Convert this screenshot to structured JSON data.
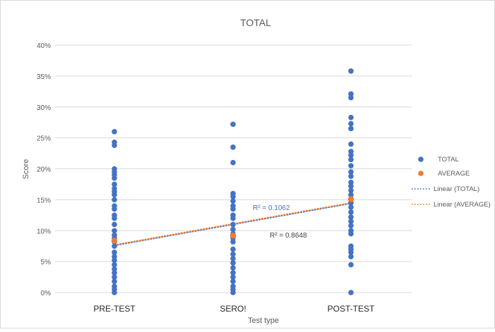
{
  "chart_data": {
    "type": "scatter",
    "title": "TOTAL",
    "xlabel": "Test type",
    "ylabel": "Score",
    "categories": [
      "PRE-TEST",
      "SERO!",
      "POST-TEST"
    ],
    "ylim": [
      0,
      0.4
    ],
    "yticks": [
      0,
      0.05,
      0.1,
      0.15,
      0.2,
      0.25,
      0.3,
      0.35,
      0.4
    ],
    "ytick_labels": [
      "0%",
      "5%",
      "10%",
      "15%",
      "20%",
      "25%",
      "30%",
      "35%",
      "40%"
    ],
    "grid": true,
    "legend_position": "right",
    "series": [
      {
        "name": "TOTAL",
        "color": "#4472c4",
        "points": [
          {
            "category": "PRE-TEST",
            "values": [
              0.26,
              0.243,
              0.238,
              0.2,
              0.195,
              0.19,
              0.185,
              0.175,
              0.168,
              0.163,
              0.158,
              0.15,
              0.14,
              0.135,
              0.125,
              0.12,
              0.11,
              0.1,
              0.093,
              0.088,
              0.082,
              0.075,
              0.065,
              0.058,
              0.052,
              0.045,
              0.038,
              0.032,
              0.025,
              0.018,
              0.01,
              0.005,
              0.0
            ]
          },
          {
            "category": "SERO!",
            "values": [
              0.272,
              0.235,
              0.21,
              0.16,
              0.155,
              0.148,
              0.14,
              0.135,
              0.125,
              0.12,
              0.11,
              0.102,
              0.095,
              0.088,
              0.082,
              0.07,
              0.062,
              0.055,
              0.048,
              0.04,
              0.032,
              0.025,
              0.018,
              0.01,
              0.005,
              0.0
            ]
          },
          {
            "category": "POST-TEST",
            "values": [
              0.358,
              0.321,
              0.315,
              0.283,
              0.273,
              0.265,
              0.24,
              0.228,
              0.222,
              0.215,
              0.205,
              0.195,
              0.188,
              0.178,
              0.172,
              0.165,
              0.158,
              0.152,
              0.145,
              0.138,
              0.13,
              0.122,
              0.115,
              0.108,
              0.1,
              0.095,
              0.075,
              0.07,
              0.065,
              0.058,
              0.045,
              0.0
            ]
          }
        ]
      },
      {
        "name": "AVERAGE",
        "color": "#ed7d31",
        "points": [
          {
            "category": "PRE-TEST",
            "value": 0.084
          },
          {
            "category": "SERO!",
            "value": 0.092
          },
          {
            "category": "POST-TEST",
            "value": 0.151
          }
        ]
      }
    ],
    "trendlines": [
      {
        "name": "Linear (TOTAL)",
        "color": "#4472c4",
        "style": "dotted",
        "r2_label": "R² = 0.1062",
        "start": 0.076,
        "end": 0.144
      },
      {
        "name": "Linear (AVERAGE)",
        "color": "#ed7d31",
        "style": "dotted",
        "r2_label": "R² = 0.8648",
        "start": 0.077,
        "end": 0.145
      }
    ],
    "legend": [
      {
        "label": "TOTAL",
        "kind": "marker",
        "color": "#4472c4"
      },
      {
        "label": "AVERAGE",
        "kind": "marker",
        "color": "#ed7d31"
      },
      {
        "label": "Linear (TOTAL)",
        "kind": "line",
        "color": "#4472c4"
      },
      {
        "label": "Linear (AVERAGE)",
        "kind": "line",
        "color": "#ed7d31"
      }
    ]
  }
}
